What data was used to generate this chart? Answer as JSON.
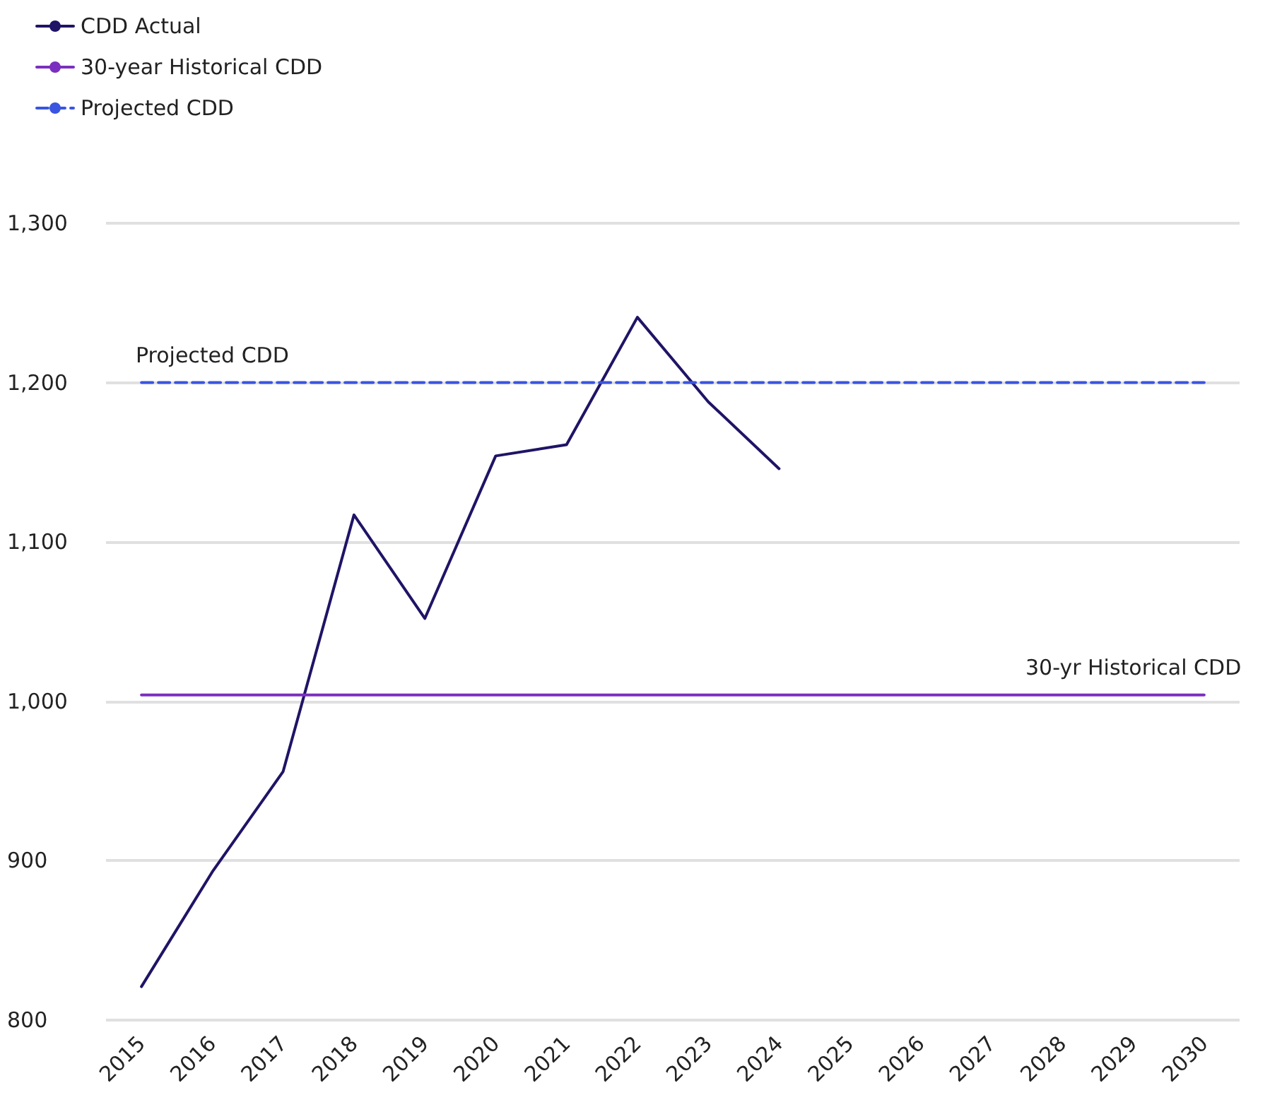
{
  "chart_data": {
    "type": "line",
    "categories": [
      "2015",
      "2016",
      "2017",
      "2018",
      "2019",
      "2020",
      "2021",
      "2022",
      "2023",
      "2024",
      "2025",
      "2026",
      "2027",
      "2028",
      "2029",
      "2030"
    ],
    "series": [
      {
        "name": "CDD Actual",
        "color": "#1f1466",
        "values": [
          821,
          893,
          956,
          1117,
          1052,
          1154,
          1161,
          1241,
          1188,
          1146,
          null,
          null,
          null,
          null,
          null,
          null
        ]
      },
      {
        "name": "30-year Historical CDD",
        "color": "#7b2fbe",
        "values": [
          1004,
          1004,
          1004,
          1004,
          1004,
          1004,
          1004,
          1004,
          1004,
          1004,
          1004,
          1004,
          1004,
          1004,
          1004,
          1004
        ]
      },
      {
        "name": "Projected CDD",
        "color": "#3a55e0",
        "line_style": "dashed",
        "values": [
          1200,
          1200,
          1200,
          1200,
          1200,
          1200,
          1200,
          1200,
          1200,
          1200,
          1200,
          1200,
          1200,
          1200,
          1200,
          1200
        ]
      }
    ],
    "ylim": [
      800,
      1300
    ],
    "yticks": [
      {
        "value": 800,
        "label": "800"
      },
      {
        "value": 900,
        "label": "900"
      },
      {
        "value": 1000,
        "label": "1,000"
      },
      {
        "value": 1100,
        "label": "1,100"
      },
      {
        "value": 1200,
        "label": "1,200"
      },
      {
        "value": 1300,
        "label": "1,300"
      }
    ],
    "annotations": [
      {
        "text": "Projected CDD",
        "x": "2016",
        "y": 1200
      },
      {
        "text": "30-yr Historical CDD",
        "x": "2029",
        "y": 1004
      }
    ],
    "grid": "y",
    "legend": "top left",
    "marker": "none"
  }
}
